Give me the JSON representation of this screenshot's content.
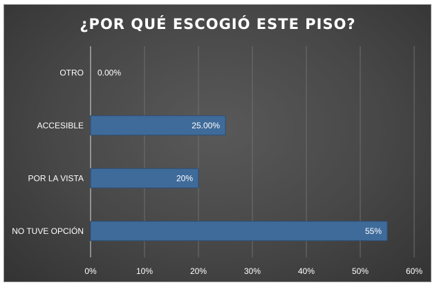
{
  "chart_data": {
    "type": "bar",
    "orientation": "horizontal",
    "title": "¿POR QUÉ ESCOGIÓ ESTE PISO?",
    "categories": [
      "OTRO",
      "ACCESIBLE",
      "POR LA VISTA",
      "NO TUVE OPCIÓN"
    ],
    "values": [
      0,
      25,
      20,
      55
    ],
    "data_labels": [
      "0.00%",
      "25.00%",
      "20%",
      "55%"
    ],
    "xlim": [
      0,
      60
    ],
    "x_ticks": [
      0,
      10,
      20,
      30,
      40,
      50,
      60
    ],
    "x_tick_labels": [
      "0%",
      "10%",
      "20%",
      "30%",
      "40%",
      "50%",
      "60%"
    ],
    "grid": true,
    "legend": "none",
    "colors": {
      "bar": "#3f6b9a",
      "bar_edge": "#2c4f78",
      "background": "#474747",
      "text": "#ffffff",
      "grid": "#6e6e6e"
    }
  }
}
